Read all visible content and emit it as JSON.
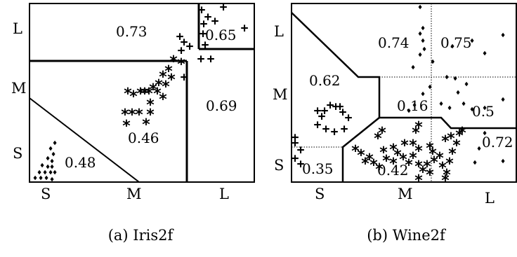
{
  "panels": [
    {
      "id": "iris2f",
      "caption": "(a) Iris2f",
      "x_ticks": [
        "S",
        "M",
        "L"
      ],
      "y_ticks": [
        "S",
        "M",
        "L"
      ],
      "region_values": [
        "0.73",
        "0.65",
        "0.69",
        "0.46",
        "0.48"
      ]
    },
    {
      "id": "wine2f",
      "caption": "(b) Wine2f",
      "x_ticks": [
        "S",
        "M",
        "L"
      ],
      "y_ticks": [
        "S",
        "M",
        "L"
      ],
      "region_values": [
        "0.74",
        "0.75",
        "0.62",
        "0.16",
        "0.5",
        "0.72",
        "0.35",
        "0.42"
      ]
    }
  ],
  "marker_legend": {
    "plus": "+",
    "star": "*",
    "diamond": "♦"
  }
}
